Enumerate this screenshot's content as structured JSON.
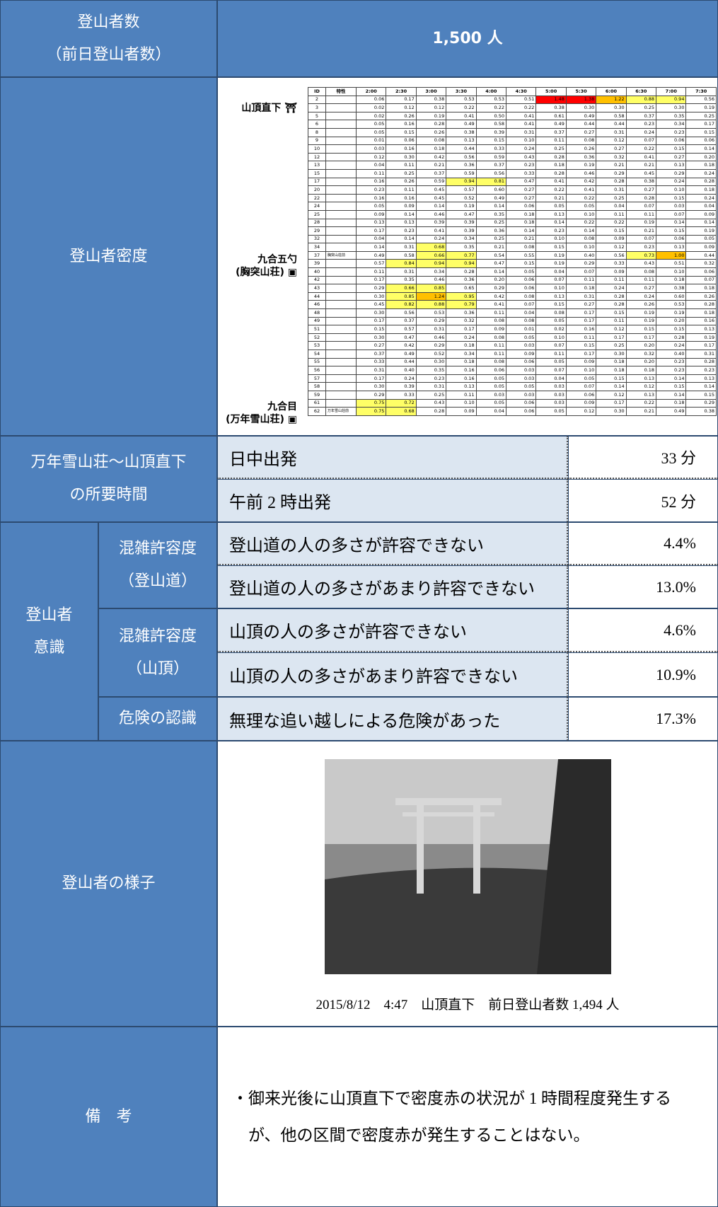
{
  "climbers": {
    "label": "登山者数",
    "sublabel": "（前日登山者数）",
    "value": "1,500 人"
  },
  "density": {
    "label": "登山者密度",
    "columns": [
      "ID",
      "特性",
      "2:00",
      "2:30",
      "3:00",
      "3:30",
      "4:00",
      "4:30",
      "5:00",
      "5:30",
      "6:00",
      "6:30",
      "7:00",
      "7:30"
    ],
    "cell_colors": [
      {
        "from": 0.66,
        "color": "#ffff66"
      },
      {
        "from": 1.0,
        "color": "#ffc000"
      },
      {
        "from": 1.35,
        "color": "#ff0000"
      }
    ],
    "places": [
      {
        "name": "山頂直下"
      },
      {
        "name": "九合五勺",
        "sub": "(胸突山荘)"
      },
      {
        "name": "九合目",
        "sub": "(万年雪山荘)"
      }
    ],
    "rows": [
      {
        "id": "2",
        "feature": "",
        "values": [
          "0.06",
          "0.17",
          "0.38",
          "0.53",
          "0.53",
          "0.51",
          "1.48",
          "1.38",
          "1.22",
          "0.88",
          "0.94",
          "0.56"
        ]
      },
      {
        "id": "3",
        "feature": "",
        "values": [
          "0.02",
          "0.12",
          "0.12",
          "0.22",
          "0.22",
          "0.22",
          "0.38",
          "0.30",
          "0.30",
          "0.25",
          "0.30",
          "0.19"
        ]
      },
      {
        "id": "5",
        "feature": "",
        "values": [
          "0.02",
          "0.26",
          "0.19",
          "0.41",
          "0.50",
          "0.41",
          "0.61",
          "0.49",
          "0.58",
          "0.37",
          "0.35",
          "0.25"
        ]
      },
      {
        "id": "6",
        "feature": "",
        "values": [
          "0.05",
          "0.16",
          "0.28",
          "0.49",
          "0.58",
          "0.41",
          "0.49",
          "0.44",
          "0.44",
          "0.23",
          "0.34",
          "0.17"
        ]
      },
      {
        "id": "8",
        "feature": "",
        "values": [
          "0.05",
          "0.15",
          "0.26",
          "0.38",
          "0.39",
          "0.31",
          "0.37",
          "0.27",
          "0.31",
          "0.24",
          "0.23",
          "0.15"
        ]
      },
      {
        "id": "9",
        "feature": "",
        "values": [
          "0.01",
          "0.06",
          "0.08",
          "0.13",
          "0.15",
          "0.10",
          "0.11",
          "0.08",
          "0.12",
          "0.07",
          "0.06",
          "0.06"
        ]
      },
      {
        "id": "10",
        "feature": "",
        "values": [
          "0.03",
          "0.16",
          "0.18",
          "0.44",
          "0.33",
          "0.24",
          "0.25",
          "0.26",
          "0.27",
          "0.22",
          "0.15",
          "0.14"
        ]
      },
      {
        "id": "12",
        "feature": "",
        "values": [
          "0.12",
          "0.30",
          "0.42",
          "0.56",
          "0.59",
          "0.43",
          "0.28",
          "0.36",
          "0.32",
          "0.41",
          "0.27",
          "0.20"
        ]
      },
      {
        "id": "13",
        "feature": "",
        "values": [
          "0.04",
          "0.11",
          "0.21",
          "0.36",
          "0.37",
          "0.23",
          "0.18",
          "0.19",
          "0.21",
          "0.21",
          "0.13",
          "0.18"
        ]
      },
      {
        "id": "15",
        "feature": "",
        "values": [
          "0.11",
          "0.25",
          "0.37",
          "0.59",
          "0.56",
          "0.33",
          "0.28",
          "0.46",
          "0.29",
          "0.45",
          "0.29",
          "0.24"
        ]
      },
      {
        "id": "17",
        "feature": "",
        "values": [
          "0.16",
          "0.26",
          "0.59",
          "0.94",
          "0.81",
          "0.47",
          "0.41",
          "0.42",
          "0.28",
          "0.38",
          "0.24",
          "0.28"
        ]
      },
      {
        "id": "20",
        "feature": "",
        "values": [
          "0.23",
          "0.11",
          "0.45",
          "0.57",
          "0.60",
          "0.27",
          "0.22",
          "0.41",
          "0.31",
          "0.27",
          "0.10",
          "0.18"
        ]
      },
      {
        "id": "22",
        "feature": "",
        "values": [
          "0.16",
          "0.16",
          "0.45",
          "0.52",
          "0.49",
          "0.27",
          "0.21",
          "0.22",
          "0.25",
          "0.28",
          "0.15",
          "0.24"
        ]
      },
      {
        "id": "24",
        "feature": "",
        "values": [
          "0.05",
          "0.09",
          "0.14",
          "0.19",
          "0.14",
          "0.06",
          "0.05",
          "0.05",
          "0.04",
          "0.07",
          "0.03",
          "0.04"
        ]
      },
      {
        "id": "25",
        "feature": "",
        "values": [
          "0.09",
          "0.14",
          "0.46",
          "0.47",
          "0.35",
          "0.18",
          "0.13",
          "0.10",
          "0.11",
          "0.11",
          "0.07",
          "0.09"
        ]
      },
      {
        "id": "28",
        "feature": "",
        "values": [
          "0.13",
          "0.13",
          "0.39",
          "0.39",
          "0.25",
          "0.18",
          "0.14",
          "0.22",
          "0.22",
          "0.19",
          "0.14",
          "0.14"
        ]
      },
      {
        "id": "29",
        "feature": "",
        "values": [
          "0.17",
          "0.23",
          "0.41",
          "0.39",
          "0.36",
          "0.14",
          "0.23",
          "0.14",
          "0.15",
          "0.21",
          "0.15",
          "0.19"
        ]
      },
      {
        "id": "32",
        "feature": "",
        "values": [
          "0.04",
          "0.14",
          "0.24",
          "0.34",
          "0.25",
          "0.21",
          "0.10",
          "0.08",
          "0.09",
          "0.07",
          "0.06",
          "0.05"
        ]
      },
      {
        "id": "34",
        "feature": "",
        "values": [
          "0.14",
          "0.31",
          "0.68",
          "0.35",
          "0.21",
          "0.08",
          "0.15",
          "0.10",
          "0.12",
          "0.23",
          "0.13",
          "0.09"
        ]
      },
      {
        "id": "37",
        "feature": "胸突山荘前",
        "values": [
          "0.49",
          "0.58",
          "0.66",
          "0.77",
          "0.54",
          "0.55",
          "0.19",
          "0.40",
          "0.56",
          "0.73",
          "1.00",
          "0.44"
        ]
      },
      {
        "id": "39",
        "feature": "",
        "values": [
          "0.57",
          "0.84",
          "0.94",
          "0.94",
          "0.47",
          "0.15",
          "0.19",
          "0.29",
          "0.33",
          "0.43",
          "0.51",
          "0.32"
        ]
      },
      {
        "id": "40",
        "feature": "",
        "values": [
          "0.11",
          "0.31",
          "0.34",
          "0.28",
          "0.14",
          "0.05",
          "0.04",
          "0.07",
          "0.09",
          "0.08",
          "0.10",
          "0.06"
        ]
      },
      {
        "id": "42",
        "feature": "",
        "values": [
          "0.17",
          "0.35",
          "0.46",
          "0.36",
          "0.20",
          "0.06",
          "0.07",
          "0.11",
          "0.11",
          "0.11",
          "0.18",
          "0.07"
        ]
      },
      {
        "id": "43",
        "feature": "",
        "values": [
          "0.29",
          "0.66",
          "0.85",
          "0.65",
          "0.29",
          "0.06",
          "0.10",
          "0.18",
          "0.24",
          "0.27",
          "0.38",
          "0.18"
        ]
      },
      {
        "id": "44",
        "feature": "",
        "values": [
          "0.30",
          "0.85",
          "1.24",
          "0.95",
          "0.42",
          "0.08",
          "0.13",
          "0.31",
          "0.28",
          "0.24",
          "0.60",
          "0.26"
        ]
      },
      {
        "id": "46",
        "feature": "",
        "values": [
          "0.45",
          "0.82",
          "0.88",
          "0.79",
          "0.41",
          "0.07",
          "0.15",
          "0.27",
          "0.28",
          "0.26",
          "0.53",
          "0.28"
        ]
      },
      {
        "id": "48",
        "feature": "",
        "values": [
          "0.30",
          "0.56",
          "0.53",
          "0.36",
          "0.11",
          "0.04",
          "0.08",
          "0.17",
          "0.15",
          "0.19",
          "0.19",
          "0.18"
        ]
      },
      {
        "id": "49",
        "feature": "",
        "values": [
          "0.17",
          "0.37",
          "0.29",
          "0.32",
          "0.08",
          "0.08",
          "0.05",
          "0.17",
          "0.11",
          "0.19",
          "0.20",
          "0.16"
        ]
      },
      {
        "id": "51",
        "feature": "",
        "values": [
          "0.15",
          "0.57",
          "0.31",
          "0.17",
          "0.09",
          "0.01",
          "0.02",
          "0.16",
          "0.12",
          "0.15",
          "0.15",
          "0.13"
        ]
      },
      {
        "id": "52",
        "feature": "",
        "values": [
          "0.30",
          "0.47",
          "0.46",
          "0.24",
          "0.08",
          "0.05",
          "0.10",
          "0.11",
          "0.17",
          "0.17",
          "0.28",
          "0.19"
        ]
      },
      {
        "id": "53",
        "feature": "",
        "values": [
          "0.27",
          "0.42",
          "0.29",
          "0.18",
          "0.11",
          "0.03",
          "0.07",
          "0.15",
          "0.25",
          "0.20",
          "0.24",
          "0.17"
        ]
      },
      {
        "id": "54",
        "feature": "",
        "values": [
          "0.37",
          "0.49",
          "0.52",
          "0.34",
          "0.11",
          "0.09",
          "0.11",
          "0.17",
          "0.30",
          "0.32",
          "0.40",
          "0.31"
        ]
      },
      {
        "id": "55",
        "feature": "",
        "values": [
          "0.33",
          "0.44",
          "0.30",
          "0.18",
          "0.08",
          "0.06",
          "0.05",
          "0.09",
          "0.18",
          "0.20",
          "0.23",
          "0.28"
        ]
      },
      {
        "id": "56",
        "feature": "",
        "values": [
          "0.31",
          "0.40",
          "0.35",
          "0.16",
          "0.06",
          "0.03",
          "0.07",
          "0.10",
          "0.18",
          "0.18",
          "0.23",
          "0.23"
        ]
      },
      {
        "id": "57",
        "feature": "",
        "values": [
          "0.17",
          "0.24",
          "0.23",
          "0.16",
          "0.05",
          "0.03",
          "0.04",
          "0.05",
          "0.15",
          "0.13",
          "0.14",
          "0.13"
        ]
      },
      {
        "id": "58",
        "feature": "",
        "values": [
          "0.30",
          "0.39",
          "0.31",
          "0.13",
          "0.05",
          "0.05",
          "0.03",
          "0.07",
          "0.14",
          "0.12",
          "0.15",
          "0.14"
        ]
      },
      {
        "id": "59",
        "feature": "",
        "values": [
          "0.29",
          "0.33",
          "0.25",
          "0.11",
          "0.03",
          "0.03",
          "0.03",
          "0.06",
          "0.12",
          "0.13",
          "0.14",
          "0.15"
        ]
      },
      {
        "id": "61",
        "feature": "",
        "values": [
          "0.75",
          "0.72",
          "0.43",
          "0.10",
          "0.05",
          "0.06",
          "0.03",
          "0.09",
          "0.17",
          "0.22",
          "0.18",
          "0.29"
        ]
      },
      {
        "id": "62",
        "feature": "万年雪山荘前",
        "values": [
          "0.75",
          "0.68",
          "0.28",
          "0.09",
          "0.04",
          "0.06",
          "0.05",
          "0.12",
          "0.30",
          "0.21",
          "0.49",
          "0.38"
        ]
      }
    ]
  },
  "travel_time": {
    "label": "万年雪山荘～山頂直下",
    "label2": "の所要時間",
    "rows": [
      {
        "label": "日中出発",
        "value": "33 分"
      },
      {
        "label": "午前 2 時出発",
        "value": "52 分"
      }
    ]
  },
  "awareness": {
    "label": "登山者",
    "label2": "意識",
    "groups": [
      {
        "label": "混雑許容度",
        "sub": "（登山道）",
        "items": [
          {
            "label": "登山道の人の多さが許容できない",
            "value": "4.4%"
          },
          {
            "label": "登山道の人の多さがあまり許容できない",
            "value": "13.0%"
          }
        ]
      },
      {
        "label": "混雑許容度",
        "sub": "（山頂）",
        "items": [
          {
            "label": "山頂の人の多さが許容できない",
            "value": "4.6%"
          },
          {
            "label": "山頂の人の多さがあまり許容できない",
            "value": "10.9%"
          }
        ]
      },
      {
        "label": "危険の認識",
        "items": [
          {
            "label": "無理な追い越しによる危険があった",
            "value": "17.3%"
          }
        ]
      }
    ]
  },
  "situation": {
    "label": "登山者の様子",
    "caption": "2015/8/12　4:47　山頂直下　前日登山者数 1,494 人"
  },
  "remarks": {
    "label": "備　考",
    "lines": [
      "・御来光後に山頂直下で密度赤の状況が 1 時間程度発生する",
      "　が、他の区間で密度赤が発生することはない。"
    ]
  }
}
